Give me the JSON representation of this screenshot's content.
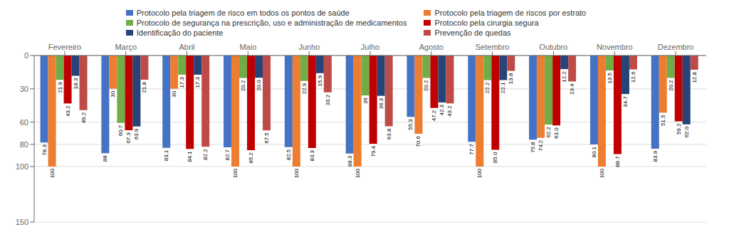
{
  "chart_data": {
    "type": "bar",
    "categories": [
      "Fevereiro",
      "Março",
      "Abril",
      "Maio",
      "Junho",
      "Julho",
      "Agosto",
      "Setembro",
      "Outubro",
      "Novembro",
      "Dezembro"
    ],
    "series": [
      {
        "name": "Protocolo pela triagem de risco em todos os pontos de saúde",
        "color": "#4472C4",
        "values": [
          78.3,
          88.0,
          83.14,
          82.68,
          82.51,
          88.28,
          55.27,
          77.68,
          75.79,
          80.11,
          83.9
        ],
        "value_labels": [
          "78.3",
          "88",
          "83.1",
          "82.7",
          "82.5",
          "88.3",
          "55.3",
          "77.7",
          "75.8",
          "80.1",
          "83.9"
        ]
      },
      {
        "name": "Protocolo pela triagem de riscos por estrato",
        "color": "#ED7D31",
        "values": [
          100.0,
          30.0,
          30.0,
          100.0,
          100.0,
          100.0,
          70.58,
          100.0,
          74.16,
          100.0,
          51.5
        ],
        "value_labels": [
          "100",
          "30",
          "30",
          "100",
          "100",
          "100",
          "70.6",
          "100",
          "74.2",
          "100",
          "51.5"
        ]
      },
      {
        "name": "Protocolo de segurança na prescrição, uso e administração de medicamentos",
        "color": "#70AD47",
        "values": [
          21.9,
          60.71,
          17.3,
          20.22,
          22.93,
          36.0,
          20.25,
          22.21,
          62.19,
          13.47,
          20.17
        ],
        "value_labels": [
          "21.9",
          "60.7",
          "17.3",
          "20.2",
          "22.9",
          "36",
          "20.2",
          "22.2",
          "62.2",
          "13.5",
          "20.2"
        ]
      },
      {
        "name": "Protocolo pela cirurgia segura",
        "color": "#C00000",
        "values": [
          43.2,
          67.3,
          84.14,
          85.22,
          83.32,
          79.44,
          47.24,
          85.01,
          63.04,
          88.71,
          59.22
        ],
        "value_labels": [
          "43.2",
          "67.3",
          "84.1",
          "85.2",
          "83.3",
          "79.4",
          "47.2",
          "85.0",
          "63.0",
          "88.7",
          "59.2"
        ]
      },
      {
        "name": "Identificação do paciente",
        "color": "#264478",
        "values": [
          18.3,
          63.9,
          17.3,
          20.03,
          15.91,
          36.33,
          42.28,
          22.14,
          12.24,
          34.71,
          62.02
        ],
        "value_labels": [
          "18.3",
          "63.9",
          "17.3",
          "20.0",
          "15.9",
          "36.3",
          "42.3",
          "22.1",
          "12.2",
          "34.7",
          "62.0"
        ]
      },
      {
        "name": "Prevenção de quedas",
        "color": "#BE4B48",
        "values": [
          49.2,
          21.8,
          82.24,
          67.45,
          33.18,
          63.85,
          43.17,
          13.84,
          23.37,
          12.57,
          12.82
        ],
        "value_labels": [
          "49.2",
          "21.8",
          "82.2",
          "67.5",
          "33.2",
          "63.8",
          "43.2",
          "13.8",
          "23.4",
          "12.6",
          "12.8"
        ]
      }
    ],
    "ylim": [
      0,
      150
    ],
    "yticks": [
      0,
      30,
      60,
      80,
      100,
      150
    ],
    "grid": true,
    "legend": "top",
    "data_labels": true
  }
}
